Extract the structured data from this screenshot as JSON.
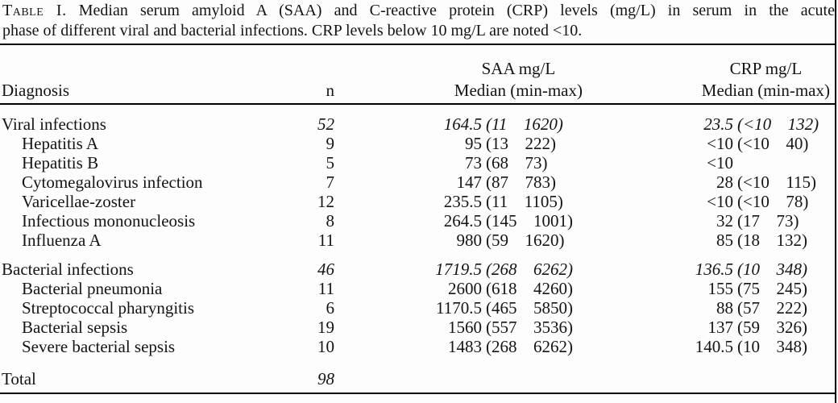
{
  "caption": {
    "label": "Table I.",
    "line1": "Median serum amyloid A (SAA) and C-reactive protein (CRP) levels (mg/L) in serum in the acute",
    "line2": "phase of different viral and bacterial infections. CRP levels below 10 mg/L are noted <10."
  },
  "header": {
    "diagnosis": "Diagnosis",
    "n": "n",
    "saa_title": "SAA mg/L",
    "saa_subtitle": "Median (min-max)",
    "crp_title": "CRP mg/L",
    "crp_subtitle": "Median (min-max)"
  },
  "table": {
    "groups": [
      {
        "header_row": {
          "name": "Viral infections",
          "n": "52",
          "saa_med": "164.5",
          "saa_range": "(11  1620)",
          "crp_med": "23.5",
          "crp_range": "(<10  132)"
        },
        "rows": [
          {
            "name": "Hepatitis A",
            "n": "9",
            "saa_med": "95",
            "saa_range": "(13  222)",
            "crp_med": "<10",
            "crp_range": "(<10  40)"
          },
          {
            "name": "Hepatitis B",
            "n": "5",
            "saa_med": "73",
            "saa_range": "(68  73)",
            "crp_med": "<10"
          },
          {
            "name": "Cytomegalovirus infection",
            "n": "7",
            "saa_med": "147",
            "saa_range": "(87  783)",
            "crp_med": "28",
            "crp_range": "(<10  115)"
          },
          {
            "name": "Varicellae-zoster",
            "n": "12",
            "saa_med": "235.5",
            "saa_range": "(11  1105)",
            "crp_med": "<10",
            "crp_range": "(<10  78)"
          },
          {
            "name": "Infectious mononucleosis",
            "n": "8",
            "saa_med": "264.5",
            "saa_range": "(145  1001)",
            "crp_med": "32",
            "crp_range": "(17  73)"
          },
          {
            "name": "Influenza A",
            "n": "11",
            "saa_med": "980",
            "saa_range": "(59  1620)",
            "crp_med": "85",
            "crp_range": "(18  132)"
          }
        ]
      },
      {
        "header_row": {
          "name": "Bacterial infections",
          "n": "46",
          "saa_med": "1719.5",
          "saa_range": "(268  6262)",
          "crp_med": "136.5",
          "crp_range": "(10  348)"
        },
        "rows": [
          {
            "name": "Bacterial pneumonia",
            "n": "11",
            "saa_med": "2600",
            "saa_range": "(618  4260)",
            "crp_med": "155",
            "crp_range": "(75  245)"
          },
          {
            "name": "Streptococcal pharyngitis",
            "n": "6",
            "saa_med": "1170.5",
            "saa_range": "(465  5850)",
            "crp_med": "88",
            "crp_range": "(57  222)"
          },
          {
            "name": "Bacterial sepsis",
            "n": "19",
            "saa_med": "1560",
            "saa_range": "(557  3536)",
            "crp_med": "137",
            "crp_range": "(59  326)"
          },
          {
            "name": "Severe bacterial sepsis",
            "n": "10",
            "saa_med": "1483",
            "saa_range": "(268  6262)",
            "crp_med": "140.5",
            "crp_range": "(10  348)"
          }
        ]
      }
    ],
    "total_row": {
      "name": "Total",
      "n": "98"
    }
  },
  "colors": {
    "text": "#141414",
    "rule": "#000000",
    "background": "#fdfdfd"
  }
}
